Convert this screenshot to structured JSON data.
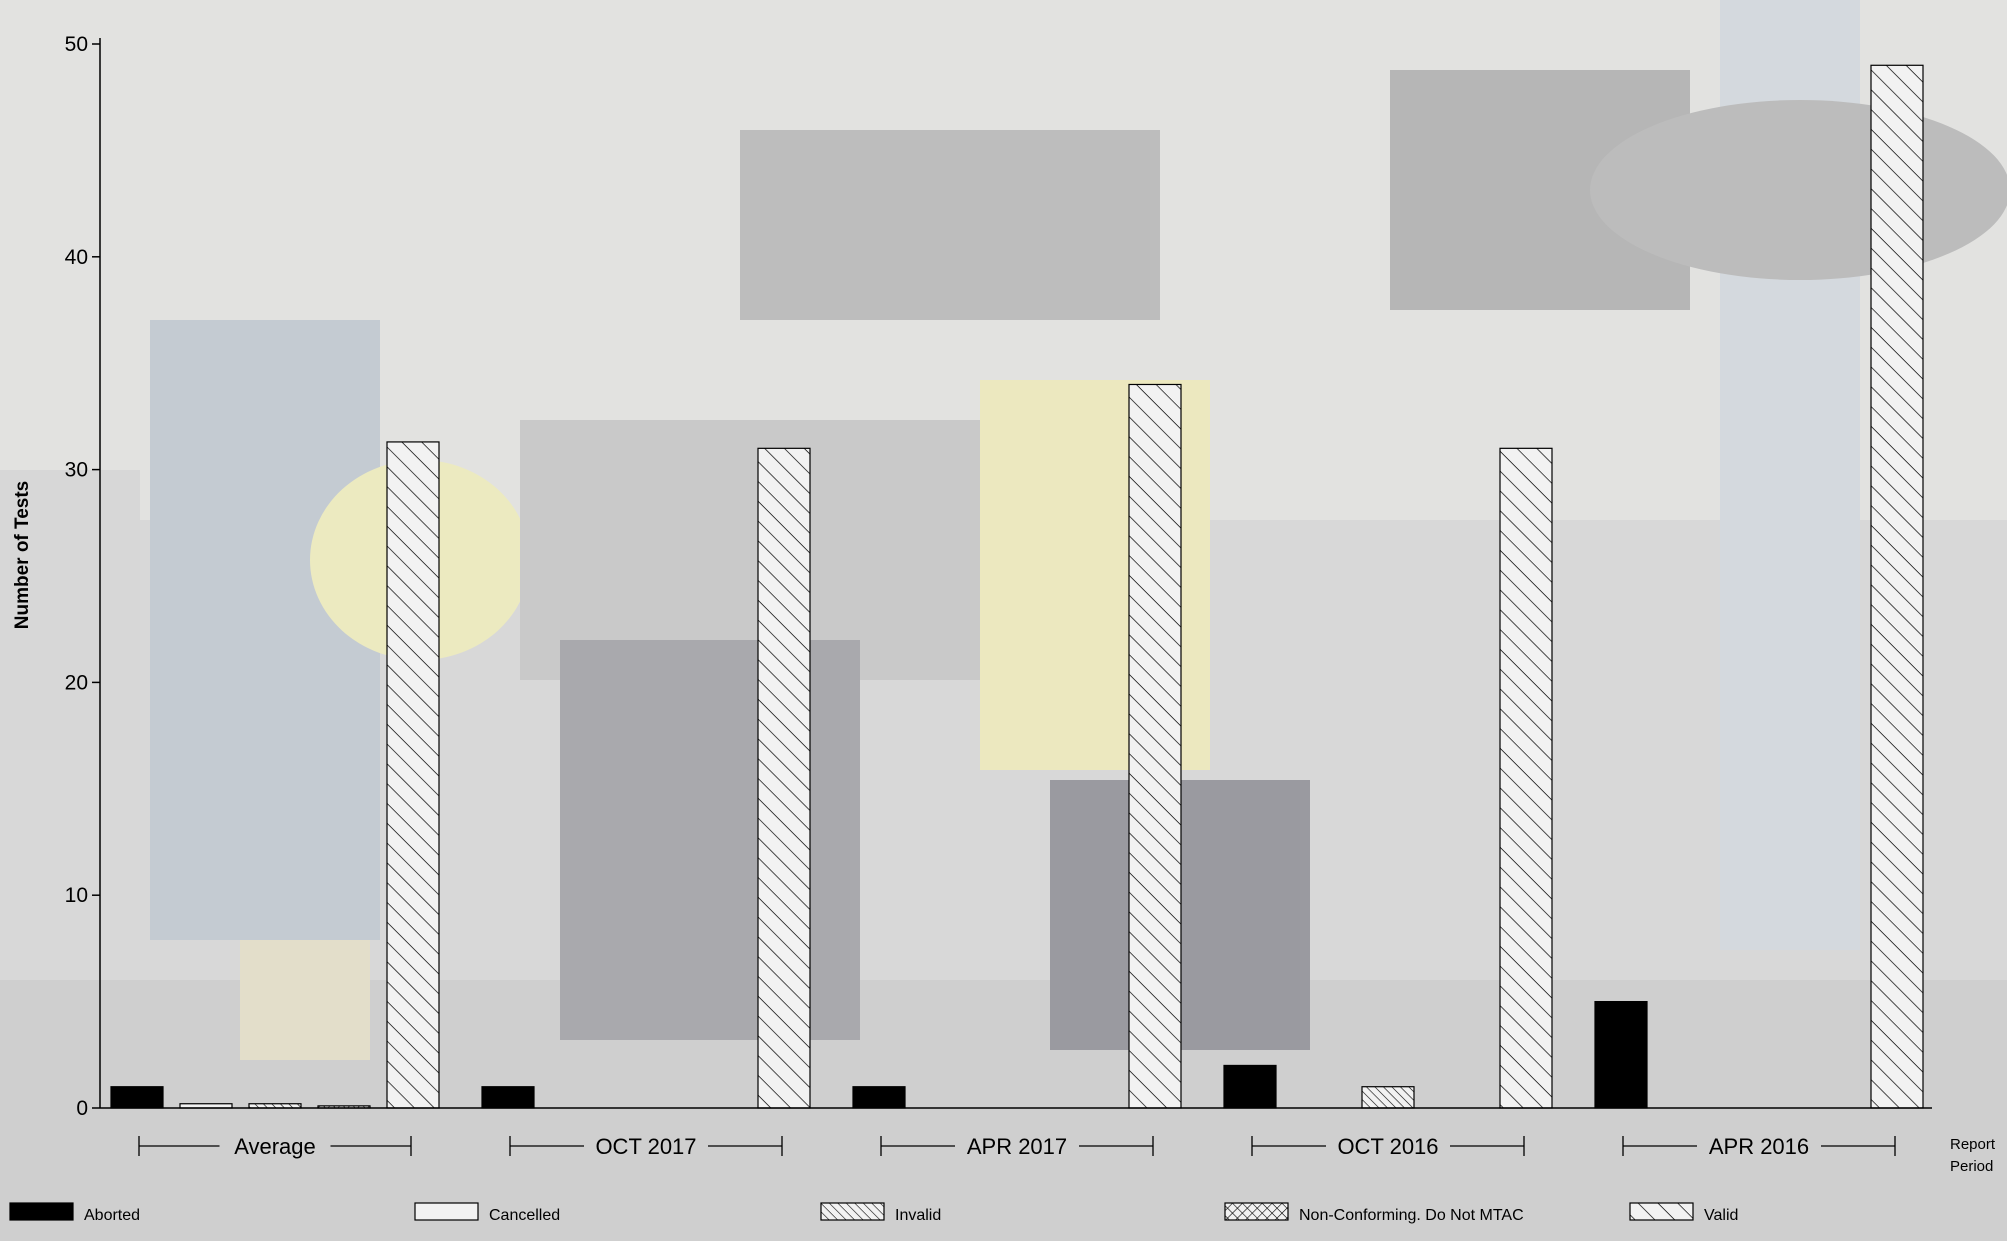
{
  "chart_data": {
    "type": "bar",
    "ylabel": "Number of Tests",
    "xlabel": "Report Period",
    "xlabel_lines": [
      "Report",
      "Period"
    ],
    "ylim": [
      0,
      50
    ],
    "y_ticks": [
      0,
      10,
      20,
      30,
      40,
      50
    ],
    "grid": false,
    "legend_position": "bottom",
    "background": "photograph of an engine test stand, faded",
    "categories": [
      "Average",
      "OCT 2017",
      "APR 2017",
      "OCT 2016",
      "APR 2016"
    ],
    "series": [
      {
        "name": "Aborted",
        "pattern": "solid-black",
        "values": [
          1.0,
          1,
          1,
          2,
          5
        ]
      },
      {
        "name": "Cancelled",
        "pattern": "empty",
        "values": [
          0.2,
          0,
          0,
          0,
          0
        ]
      },
      {
        "name": "Invalid",
        "pattern": "dense-hatch",
        "values": [
          0.2,
          0,
          0,
          1,
          0
        ]
      },
      {
        "name": "Non-Conforming. Do Not MTAC",
        "pattern": "crosshatch",
        "values": [
          0.1,
          0,
          0,
          0,
          0
        ]
      },
      {
        "name": "Valid",
        "pattern": "diagonal-hatch",
        "values": [
          31.3,
          31,
          34,
          31,
          49
        ]
      }
    ]
  }
}
